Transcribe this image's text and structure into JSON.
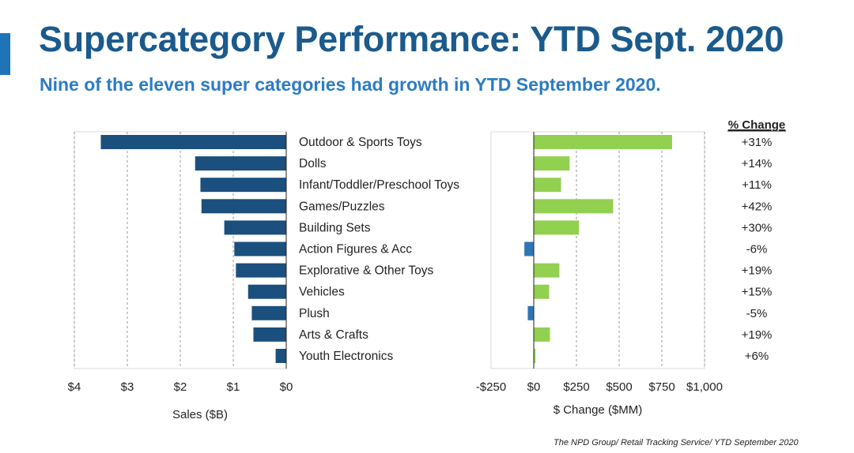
{
  "title": "Supercategory Performance: YTD Sept. 2020",
  "subtitle": "Nine of the eleven super categories had growth in YTD September 2020.",
  "source": "The NPD Group/ Retail Tracking Service/ YTD September 2020",
  "colors": {
    "sales_bar": "#1b4f7d",
    "positive_bar": "#92d050",
    "negative_bar": "#2e75b6",
    "gridline": "#9a9a9a",
    "title": "#1b5a8c",
    "subtitle": "#2c7bc4"
  },
  "chart_data": [
    {
      "type": "bar",
      "orientation": "horizontal",
      "title": "",
      "xlabel": "Sales ($B)",
      "ylabel": "",
      "xlim": [
        4,
        0
      ],
      "grid": true,
      "categories": [
        "Outdoor & Sports Toys",
        "Dolls",
        "Infant/Toddler/Preschool Toys",
        "Games/Puzzles",
        "Building Sets",
        "Action Figures & Acc",
        "Explorative & Other Toys",
        "Vehicles",
        "Plush",
        "Arts & Crafts",
        "Youth Electronics"
      ],
      "values": [
        3.5,
        1.72,
        1.62,
        1.6,
        1.17,
        0.98,
        0.95,
        0.72,
        0.65,
        0.62,
        0.2
      ],
      "ticks": [
        4,
        3,
        2,
        1,
        0
      ],
      "tick_labels": [
        "$4",
        "$3",
        "$2",
        "$1",
        "$0"
      ]
    },
    {
      "type": "bar",
      "orientation": "horizontal",
      "title": "",
      "xlabel": "$ Change ($MM)",
      "ylabel": "",
      "xlim": [
        -250,
        1000
      ],
      "grid": true,
      "categories": [
        "Outdoor & Sports Toys",
        "Dolls",
        "Infant/Toddler/Preschool Toys",
        "Games/Puzzles",
        "Building Sets",
        "Action Figures & Acc",
        "Explorative & Other Toys",
        "Vehicles",
        "Plush",
        "Arts & Crafts",
        "Youth Electronics"
      ],
      "values": [
        810,
        210,
        160,
        465,
        265,
        -55,
        150,
        90,
        -35,
        95,
        10
      ],
      "ticks": [
        -250,
        0,
        250,
        500,
        750,
        1000
      ],
      "tick_labels": [
        "-$250",
        "$0",
        "$250",
        "$500",
        "$750",
        "$1,000"
      ],
      "pct_change_header": "% Change",
      "pct_change": [
        "+31%",
        "+14%",
        "+11%",
        "+42%",
        "+30%",
        "-6%",
        "+19%",
        "+15%",
        "-5%",
        "+19%",
        "+6%"
      ]
    }
  ]
}
